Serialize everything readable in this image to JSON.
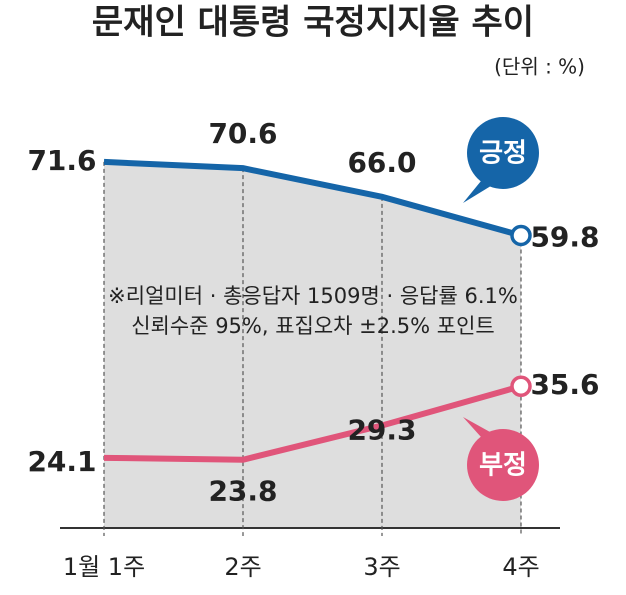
{
  "chart_data": {
    "type": "line",
    "title": "문재인 대통령 국정지지율 추이",
    "subtitle": "(단위 : %)",
    "annotations": [
      "※리얼미터 · 총응답자 1509명 · 응답률 6.1%",
      "신뢰수준 95%, 표집오차 ±2.5% 포인트"
    ],
    "categories": [
      "1월 1주",
      "2주",
      "3주",
      "4주"
    ],
    "series": [
      {
        "name": "긍정",
        "color": "#1565a8",
        "values": [
          71.6,
          70.6,
          66.0,
          59.8
        ],
        "value_labels": [
          "71.6",
          "70.6",
          "66.0",
          "59.8"
        ]
      },
      {
        "name": "부정",
        "color": "#e0557a",
        "values": [
          24.1,
          23.8,
          29.3,
          35.6
        ],
        "value_labels": [
          "24.1",
          "23.8",
          "29.3",
          "35.6"
        ]
      }
    ]
  }
}
